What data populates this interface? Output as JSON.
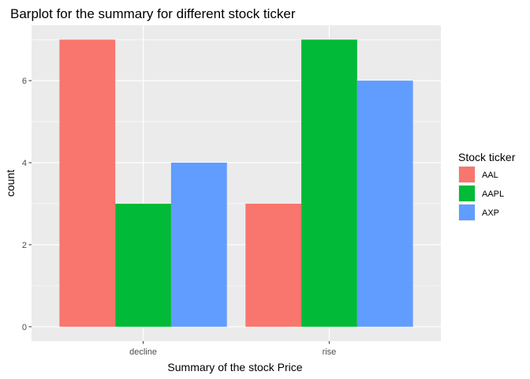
{
  "chart_data": {
    "type": "bar",
    "title": "Barplot for the summary for different stock ticker",
    "xlabel": "Summary of the stock Price",
    "ylabel": "count",
    "categories": [
      "decline",
      "rise"
    ],
    "series": [
      {
        "name": "AAL",
        "values": [
          7,
          3
        ],
        "color": "#F8766D"
      },
      {
        "name": "AAPL",
        "values": [
          3,
          7
        ],
        "color": "#00BA38"
      },
      {
        "name": "AXP",
        "values": [
          4,
          6
        ],
        "color": "#619CFF"
      }
    ],
    "ylim": [
      -0.35,
      7.35
    ],
    "yticks": [
      "0",
      "2",
      "4",
      "6"
    ],
    "grid": true,
    "legend": {
      "title": "Stock ticker",
      "position": "right"
    },
    "panel_background": "#EBEBEB",
    "grid_color": "#FFFFFF"
  }
}
